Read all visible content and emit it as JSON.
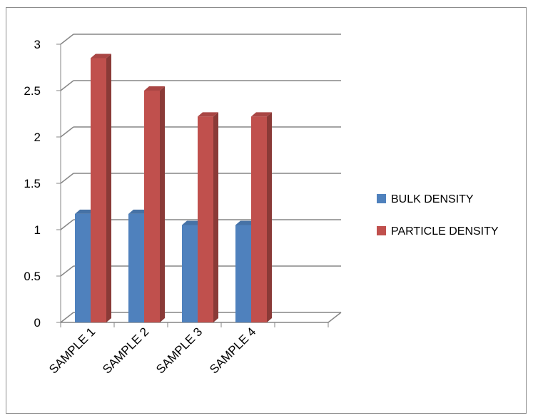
{
  "chart_data": {
    "type": "bar",
    "title": "",
    "xlabel": "",
    "ylabel": "",
    "categories": [
      "SAMPLE 1",
      "SAMPLE 2",
      "SAMPLE 3",
      "SAMPLE 4",
      ""
    ],
    "series": [
      {
        "name": "BULK DENSITY",
        "color": "#4f81bd",
        "values": [
          1.17,
          1.17,
          1.05,
          1.05,
          null
        ]
      },
      {
        "name": "PARTICLE DENSITY",
        "color": "#c0504d",
        "values": [
          2.85,
          2.5,
          2.22,
          2.22,
          null
        ]
      }
    ],
    "ylim": [
      0,
      3
    ],
    "yticks": [
      "0",
      "0.5",
      "1",
      "1.5",
      "2",
      "2.5",
      "3"
    ],
    "grid": true,
    "legend": "right",
    "style": "3d-clustered-column"
  }
}
